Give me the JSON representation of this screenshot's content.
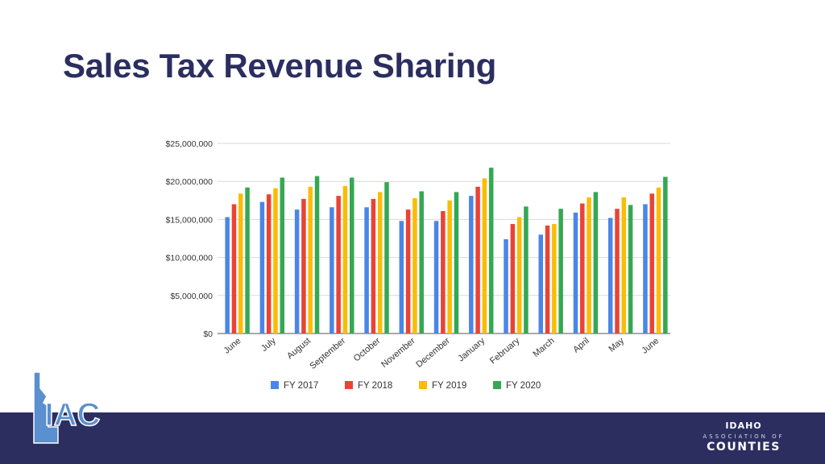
{
  "slide": {
    "title": "Sales Tax Revenue Sharing"
  },
  "footer": {
    "left_logo_text": "IAC",
    "right_logo": {
      "line1": "IDAHO",
      "line2": "ASSOCIATION OF",
      "line3": "COUNTIES"
    },
    "bar_color": "#2b2e5f"
  },
  "chart_data": {
    "type": "bar",
    "title": "",
    "xlabel": "",
    "ylabel": "",
    "categories": [
      "June",
      "July",
      "August",
      "September",
      "October",
      "November",
      "December",
      "January",
      "February",
      "March",
      "April",
      "May",
      "June"
    ],
    "ylim": [
      0,
      25000000
    ],
    "yticks": [
      0,
      5000000,
      10000000,
      15000000,
      20000000,
      25000000
    ],
    "ytick_labels": [
      "$0",
      "$5,000,000",
      "$10,000,000",
      "$15,000,000",
      "$20,000,000",
      "$25,000,000"
    ],
    "grid": true,
    "legend_position": "bottom",
    "series": [
      {
        "name": "FY 2017",
        "color": "#4a86e8",
        "values": [
          15300000,
          17300000,
          16300000,
          16600000,
          16600000,
          14800000,
          14800000,
          18100000,
          12400000,
          13000000,
          15900000,
          15200000,
          17000000
        ]
      },
      {
        "name": "FY 2018",
        "color": "#ea4335",
        "values": [
          17000000,
          18300000,
          17700000,
          18100000,
          17700000,
          16300000,
          16100000,
          19300000,
          14400000,
          14200000,
          17100000,
          16400000,
          18400000
        ]
      },
      {
        "name": "FY 2019",
        "color": "#fbbc04",
        "values": [
          18400000,
          19100000,
          19300000,
          19400000,
          18600000,
          17800000,
          17500000,
          20400000,
          15300000,
          14400000,
          17900000,
          17900000,
          19200000
        ]
      },
      {
        "name": "FY 2020",
        "color": "#34a853",
        "values": [
          19200000,
          20500000,
          20700000,
          20500000,
          19900000,
          18700000,
          18600000,
          21800000,
          16700000,
          16400000,
          18600000,
          16900000,
          20600000
        ]
      }
    ]
  }
}
